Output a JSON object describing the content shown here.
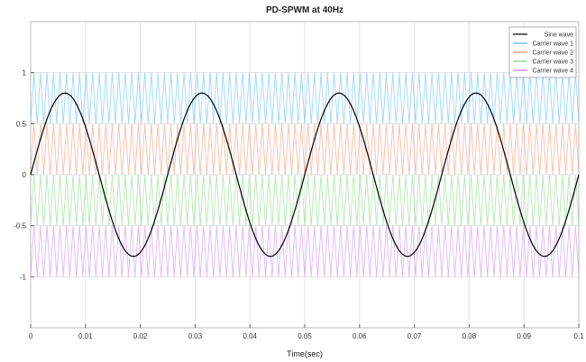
{
  "chart_data": {
    "type": "line",
    "title": "PD-SPWM at 40Hz",
    "xlabel": "Time(sec)",
    "ylabel": "",
    "xlim": [
      0,
      0.1
    ],
    "ylim": [
      -1.5,
      1.5
    ],
    "x_ticks": [
      0,
      0.01,
      0.02,
      0.03,
      0.04,
      0.05,
      0.06,
      0.07,
      0.08,
      0.09,
      0.1
    ],
    "x_tick_labels": [
      "0",
      "0.01",
      "0.02",
      "0.03",
      "0.04",
      "0.05",
      "0.06",
      "0.07",
      "0.08",
      "0.09",
      "0.1"
    ],
    "y_ticks": [
      1,
      0.5,
      0,
      -0.5,
      -1
    ],
    "y_tick_labels": [
      "1",
      "0.5",
      "0",
      "-0.5",
      "-1"
    ],
    "grid": true,
    "legend_position": "top-right",
    "sine": {
      "name": "Sine wave",
      "amplitude": 0.8,
      "frequency_hz": 40,
      "color": "#000000"
    },
    "carriers": [
      {
        "name": "Carrier wave 1",
        "range": [
          0.5,
          1
        ],
        "color": "#4db8ff"
      },
      {
        "name": "Carrier wave 2",
        "range": [
          0,
          0.5
        ],
        "color": "#f08a6a"
      },
      {
        "name": "Carrier wave 3",
        "range": [
          -0.5,
          0
        ],
        "color": "#7ad67a"
      },
      {
        "name": "Carrier wave 4",
        "range": [
          -1,
          -0.5
        ],
        "color": "#c77ef2"
      }
    ],
    "carrier_periods_per_sine_cycle": 21
  }
}
